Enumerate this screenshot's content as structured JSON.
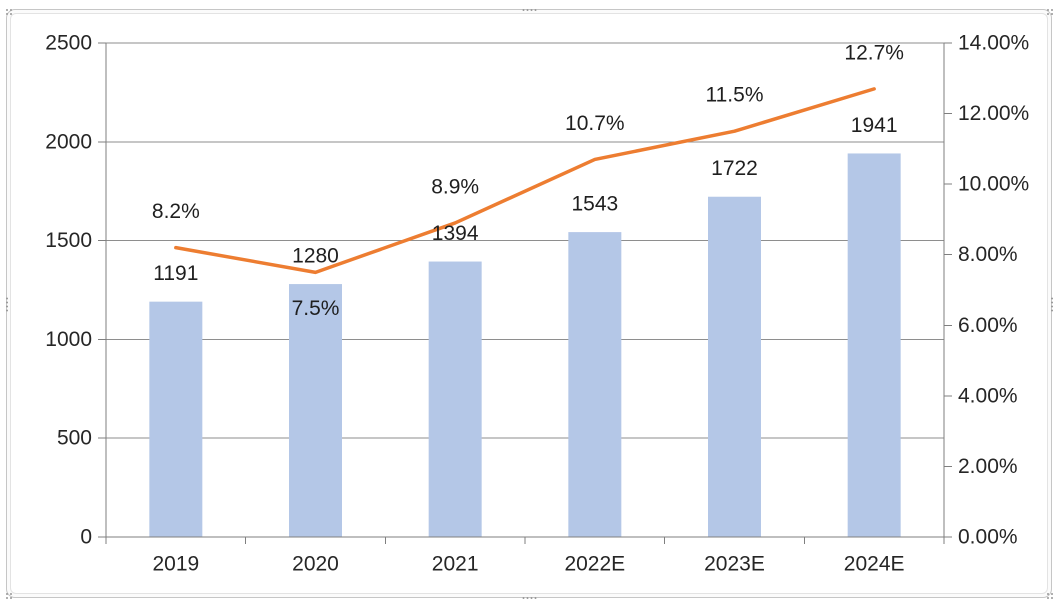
{
  "chart_data": {
    "type": "bar",
    "subtype": "combo-bar-line",
    "title": "",
    "categories": [
      "2019",
      "2020",
      "2021",
      "2022E",
      "2023E",
      "2024E"
    ],
    "series": [
      {
        "name": "value-bars",
        "type": "bar",
        "axis": "left",
        "color": "#b4c7e7",
        "values": [
          1191,
          1280,
          1394,
          1543,
          1722,
          1941
        ],
        "data_labels": [
          "1191",
          "1280",
          "1394",
          "1543",
          "1722",
          "1941"
        ]
      },
      {
        "name": "growth-rate-line",
        "type": "line",
        "axis": "right",
        "color": "#ed7d31",
        "values": [
          8.2,
          7.5,
          8.9,
          10.7,
          11.5,
          12.7
        ],
        "data_labels": [
          "8.2%",
          "7.5%",
          "8.9%",
          "10.7%",
          "11.5%",
          "12.7%"
        ],
        "label_position": [
          "above",
          "below",
          "above",
          "above",
          "above",
          "above"
        ]
      }
    ],
    "left_axis": {
      "min": 0,
      "max": 2500,
      "step": 500,
      "tick_labels": [
        "0",
        "500",
        "1000",
        "1500",
        "2000",
        "2500"
      ]
    },
    "right_axis": {
      "min": 0,
      "max": 14,
      "step": 2,
      "tick_labels": [
        "0.00%",
        "2.00%",
        "4.00%",
        "6.00%",
        "8.00%",
        "10.00%",
        "12.00%",
        "14.00%"
      ]
    },
    "gridlines": "horizontal",
    "legend": "none",
    "styles": {
      "grid_color": "#8e8e8e",
      "axis_color": "#7f7f7f",
      "tick_color": "#7f7f7f",
      "label_color": "#1f1f1f",
      "tick_label_color": "#262626",
      "bar_fill": "#b4c7e7",
      "line_stroke": "#ed7d31"
    }
  }
}
